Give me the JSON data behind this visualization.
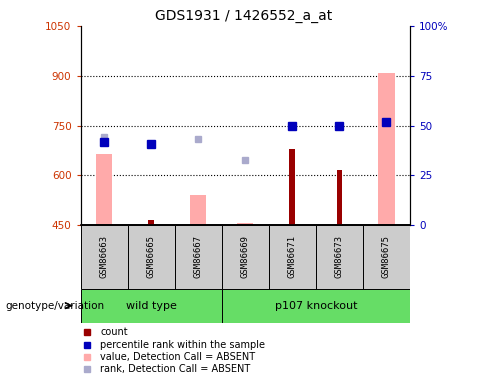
{
  "title": "GDS1931 / 1426552_a_at",
  "samples": [
    "GSM86663",
    "GSM86665",
    "GSM86667",
    "GSM86669",
    "GSM86671",
    "GSM86673",
    "GSM86675"
  ],
  "ylim_left": [
    450,
    1050
  ],
  "ylim_right": [
    0,
    100
  ],
  "yticks_left": [
    450,
    600,
    750,
    900,
    1050
  ],
  "yticks_right": [
    0,
    25,
    50,
    75,
    100
  ],
  "count_values": [
    null,
    465,
    null,
    null,
    680,
    615,
    null
  ],
  "count_color": "#990000",
  "rank_values": [
    700,
    695,
    null,
    null,
    750,
    750,
    760
  ],
  "rank_color": "#0000bb",
  "absent_value_values": [
    665,
    null,
    540,
    455,
    null,
    null,
    910
  ],
  "absent_value_color": "#ffaaaa",
  "absent_rank_values": [
    715,
    null,
    710,
    645,
    null,
    null,
    760
  ],
  "absent_rank_color": "#aaaacc",
  "group_bg": "#66dd66",
  "sample_bg": "#cccccc",
  "baseline": 450,
  "wt_group_label": "wild type",
  "ko_group_label": "p107 knockout",
  "geno_label": "genotype/variation",
  "legend_items": [
    {
      "color": "#990000",
      "label": "count"
    },
    {
      "color": "#0000bb",
      "label": "percentile rank within the sample"
    },
    {
      "color": "#ffaaaa",
      "label": "value, Detection Call = ABSENT"
    },
    {
      "color": "#aaaacc",
      "label": "rank, Detection Call = ABSENT"
    }
  ]
}
